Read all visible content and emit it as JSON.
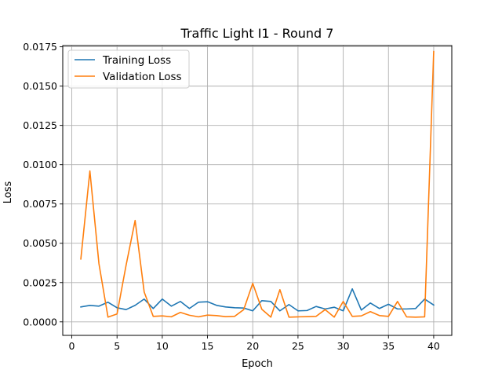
{
  "chart_data": {
    "type": "line",
    "title": "Traffic Light I1 - Round 7",
    "xlabel": "Epoch",
    "ylabel": "Loss",
    "xlim": [
      -1,
      42
    ],
    "ylim": [
      -0.00086,
      0.01758
    ],
    "x_ticks": [
      0,
      5,
      10,
      15,
      20,
      25,
      30,
      35,
      40
    ],
    "y_ticks": [
      0.0,
      0.0025,
      0.005,
      0.0075,
      0.01,
      0.0125,
      0.015,
      0.0175
    ],
    "y_tick_labels": [
      "0.0000",
      "0.0025",
      "0.0050",
      "0.0075",
      "0.0100",
      "0.0125",
      "0.0150",
      "0.0175"
    ],
    "grid": true,
    "legend_position": "top-left",
    "x": [
      1,
      2,
      3,
      4,
      5,
      6,
      7,
      8,
      9,
      10,
      11,
      12,
      13,
      14,
      15,
      16,
      17,
      18,
      19,
      20,
      21,
      22,
      23,
      24,
      25,
      26,
      27,
      28,
      29,
      30,
      31,
      32,
      33,
      34,
      35,
      36,
      37,
      38,
      39,
      40
    ],
    "series": [
      {
        "name": "Training Loss",
        "color": "#1f77b4",
        "values": [
          0.00095,
          0.00105,
          0.001,
          0.00125,
          0.0009,
          0.00078,
          0.00105,
          0.00145,
          0.00085,
          0.00145,
          0.001,
          0.0013,
          0.00085,
          0.00125,
          0.00128,
          0.00105,
          0.00095,
          0.0009,
          0.00088,
          0.0007,
          0.00135,
          0.0013,
          0.0007,
          0.0011,
          0.0007,
          0.00072,
          0.00098,
          0.00082,
          0.00093,
          0.0007,
          0.0021,
          0.00075,
          0.0012,
          0.00085,
          0.00112,
          0.00082,
          0.00082,
          0.00085,
          0.00145,
          0.00107
        ]
      },
      {
        "name": "Validation Loss",
        "color": "#ff7f0e",
        "values": [
          0.004,
          0.0096,
          0.0037,
          0.0003,
          0.0005,
          0.0036,
          0.00645,
          0.0019,
          0.00035,
          0.00038,
          0.00032,
          0.0006,
          0.00042,
          0.00032,
          0.00043,
          0.0004,
          0.00033,
          0.00035,
          0.00078,
          0.00245,
          0.0008,
          0.0003,
          0.00205,
          0.0003,
          0.00032,
          0.00033,
          0.00035,
          0.00078,
          0.0003,
          0.0013,
          0.00035,
          0.00038,
          0.00065,
          0.0004,
          0.00035,
          0.0013,
          0.00032,
          0.0003,
          0.00032,
          0.0172
        ]
      }
    ]
  }
}
